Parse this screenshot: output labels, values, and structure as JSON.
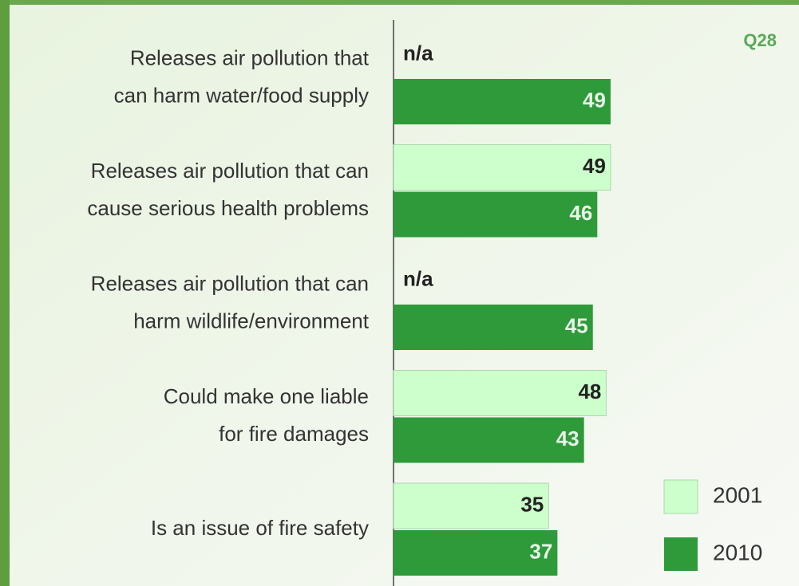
{
  "chart_data": {
    "type": "bar",
    "orientation": "horizontal",
    "annotation": "Q28",
    "categories": [
      [
        "Releases air pollution that",
        "can harm water/food supply"
      ],
      [
        "Releases air pollution that can",
        "cause serious health problems"
      ],
      [
        "Releases air pollution that can",
        "harm wildlife/environment"
      ],
      [
        "Could make one liable",
        "for fire damages"
      ],
      [
        "Is an issue of fire safety"
      ]
    ],
    "series": [
      {
        "name": "2001",
        "color": "#ccffcc",
        "values": [
          null,
          49,
          null,
          48,
          35
        ],
        "value_labels": [
          "n/a",
          "49",
          "n/a",
          "48",
          "35"
        ]
      },
      {
        "name": "2010",
        "color": "#2e9a3a",
        "values": [
          49,
          46,
          45,
          43,
          37
        ]
      }
    ],
    "legend": "bottom-right"
  }
}
